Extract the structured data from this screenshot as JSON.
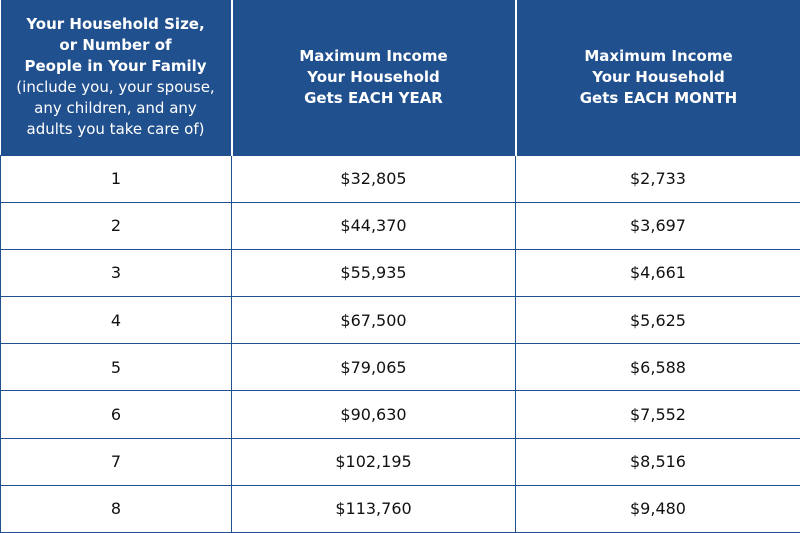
{
  "table": {
    "header": [
      {
        "title_lines": [
          "Your Household Size,",
          "or Number of",
          "People in Your Family"
        ],
        "note_lines": [
          "(include you, your spouse,",
          "any children, and any",
          "adults you take care of)"
        ]
      },
      {
        "lines": [
          "Maximum Income",
          "Your Household"
        ],
        "last_line": "Gets",
        "emphasis": "EACH YEAR"
      },
      {
        "lines": [
          "Maximum Income",
          "Your  Household"
        ],
        "last_line": "Gets",
        "emphasis": "EACH MONTH"
      }
    ],
    "rows": [
      [
        "1",
        "$32,805",
        "$2,733"
      ],
      [
        "2",
        "$44,370",
        "$3,697"
      ],
      [
        "3",
        "$55,935",
        "$4,661"
      ],
      [
        "4",
        "$67,500",
        "$5,625"
      ],
      [
        "5",
        "$79,065",
        "$6,588"
      ],
      [
        "6",
        "$90,630",
        "$7,552"
      ],
      [
        "7",
        "$102,195",
        "$8,516"
      ],
      [
        "8",
        "$113,760",
        "$9,480"
      ]
    ]
  }
}
